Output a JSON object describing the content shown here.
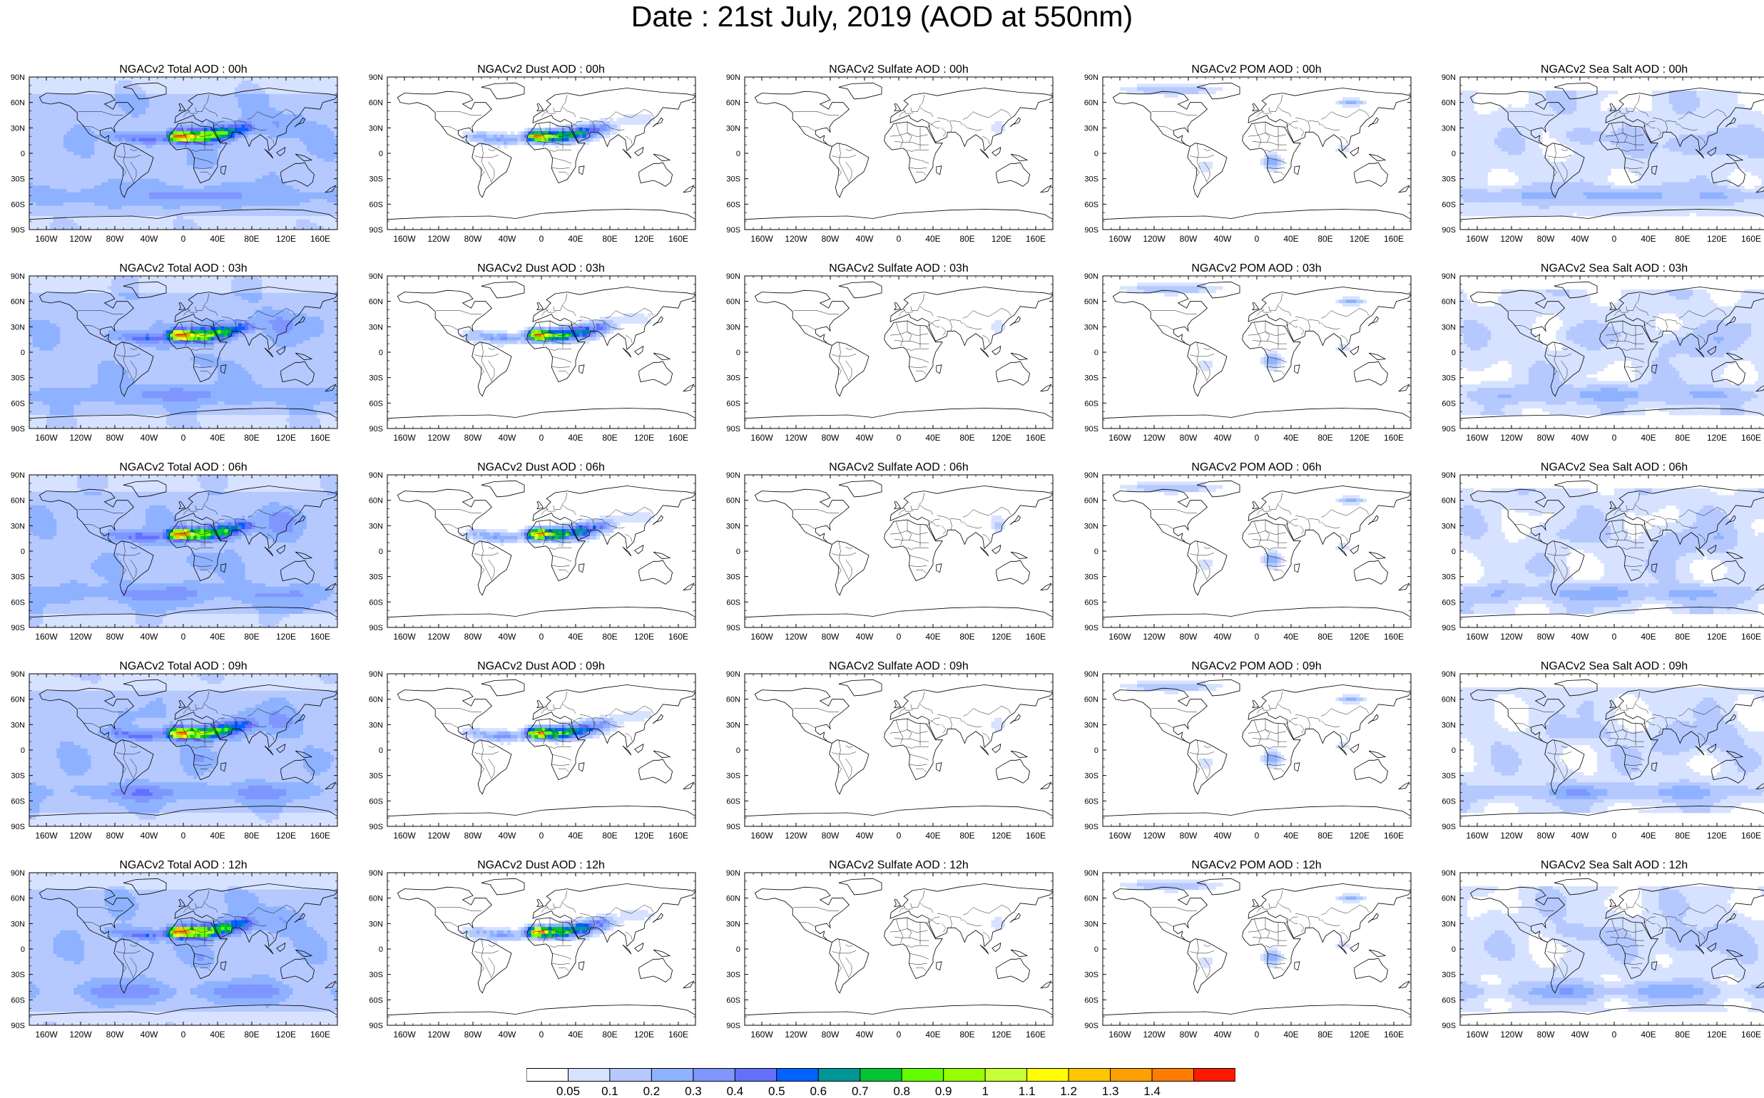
{
  "title": "Date : 21st July, 2019 (AOD at 550nm)",
  "panels": [
    {
      "title": "NGACv2 Total AOD : 00h",
      "field": "total"
    },
    {
      "title": "NGACv2 Dust AOD : 00h",
      "field": "dust"
    },
    {
      "title": "NGACv2 Sulfate AOD : 00h",
      "field": "sulfate"
    },
    {
      "title": "NGACv2 POM AOD : 00h",
      "field": "pom"
    },
    {
      "title": "NGACv2 Sea Salt AOD : 00h",
      "field": "seasalt"
    },
    {
      "title": "NGACv2 Total AOD : 03h",
      "field": "total"
    },
    {
      "title": "NGACv2 Dust AOD : 03h",
      "field": "dust"
    },
    {
      "title": "NGACv2 Sulfate AOD : 03h",
      "field": "sulfate"
    },
    {
      "title": "NGACv2 POM AOD : 03h",
      "field": "pom"
    },
    {
      "title": "NGACv2 Sea Salt AOD : 03h",
      "field": "seasalt"
    },
    {
      "title": "NGACv2 Total AOD : 06h",
      "field": "total"
    },
    {
      "title": "NGACv2 Dust AOD : 06h",
      "field": "dust"
    },
    {
      "title": "NGACv2 Sulfate AOD : 06h",
      "field": "sulfate"
    },
    {
      "title": "NGACv2 POM AOD : 06h",
      "field": "pom"
    },
    {
      "title": "NGACv2 Sea Salt AOD : 06h",
      "field": "seasalt"
    },
    {
      "title": "NGACv2 Total AOD : 09h",
      "field": "total"
    },
    {
      "title": "NGACv2 Dust AOD : 09h",
      "field": "dust"
    },
    {
      "title": "NGACv2 Sulfate AOD : 09h",
      "field": "sulfate"
    },
    {
      "title": "NGACv2 POM AOD : 09h",
      "field": "pom"
    },
    {
      "title": "NGACv2 Sea Salt  AOD : 09h",
      "field": "seasalt"
    },
    {
      "title": "NGACv2 Total AOD  : 12h",
      "field": "total"
    },
    {
      "title": "NGACv2 Dust AOD : 12h",
      "field": "dust"
    },
    {
      "title": "NGACv2 Sulfate AOD : 12h",
      "field": "sulfate"
    },
    {
      "title": "NGACv2 POM  AOD : 12h",
      "field": "pom"
    },
    {
      "title": "NGACv2 Sea Salt AOD : 12h",
      "field": "seasalt"
    }
  ],
  "lat_ticks": [
    "90N",
    "60N",
    "30N",
    "0",
    "30S",
    "60S",
    "90S"
  ],
  "lon_ticks": [
    "160W",
    "120W",
    "80W",
    "40W",
    "0",
    "40E",
    "80E",
    "120E",
    "160E"
  ],
  "colorbar": {
    "labels": [
      "0.05",
      "0.1",
      "0.2",
      "0.3",
      "0.4",
      "0.5",
      "0.6",
      "0.7",
      "0.8",
      "0.9",
      "1",
      "1.1",
      "1.2",
      "1.3",
      "1.4"
    ],
    "colors": [
      "#ffffff",
      "#d6e2ff",
      "#b5c9ff",
      "#8eb2ff",
      "#7f96ff",
      "#6370ff",
      "#0063ff",
      "#009696",
      "#00c633",
      "#63ff00",
      "#96ff00",
      "#c6ff33",
      "#ffff00",
      "#ffc600",
      "#ffa000",
      "#ff7c00",
      "#ff1900"
    ]
  },
  "map_style": {
    "coast_color": "#000000",
    "plume_colors": {
      "low": "#d6e2ff",
      "mid": "#8eb2ff",
      "high": "#6370ff",
      "green": "#63ff00",
      "yellow": "#ffff00",
      "orange": "#ffa000",
      "red": "#ff1900"
    }
  }
}
